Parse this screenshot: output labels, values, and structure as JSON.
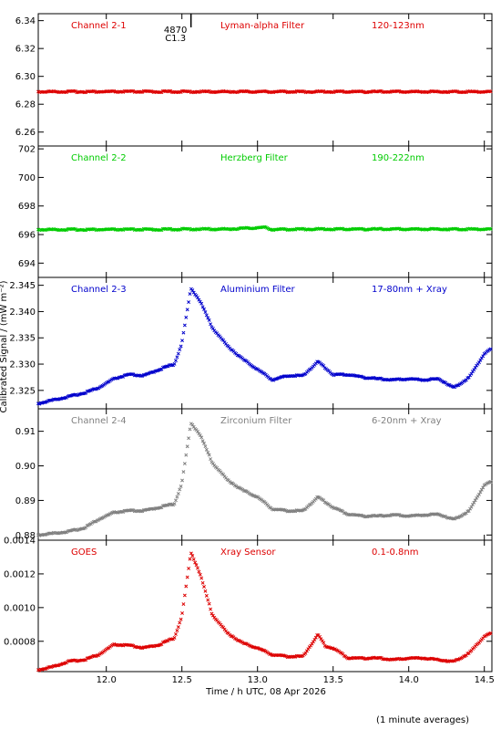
{
  "chart_data": {
    "type": "scatter",
    "xlabel": "Time / h UTC, 08 Apr 2026",
    "ylabel": "Calibrated Signal / (mW m⁻²)",
    "footnote": "(1 minute averages)",
    "xlim": [
      11.55,
      14.55
    ],
    "xticks": [
      12.0,
      12.5,
      13.0,
      13.5,
      14.0,
      14.5
    ],
    "xtick_labels": [
      "12.0",
      "12.5",
      "13.0",
      "13.5",
      "14.0",
      "14.5"
    ],
    "event": {
      "x": 12.56,
      "label_top": "4870",
      "label_bottom": "C1.3"
    },
    "panels": [
      {
        "channel": "Channel 2-1",
        "filter": "Lyman-alpha Filter",
        "band": "120-123nm",
        "color": "#dd0000",
        "ylim": [
          6.25,
          6.345
        ],
        "yticks": [
          6.26,
          6.28,
          6.3,
          6.32,
          6.34
        ],
        "ytick_labels": [
          "6.26",
          "6.28",
          "6.30",
          "6.32",
          "6.34"
        ],
        "points": [
          [
            11.55,
            6.289
          ],
          [
            11.8,
            6.289
          ],
          [
            12.05,
            6.289
          ],
          [
            12.3,
            6.289
          ],
          [
            12.55,
            6.289
          ],
          [
            12.8,
            6.289
          ],
          [
            13.05,
            6.289
          ],
          [
            13.3,
            6.289
          ],
          [
            13.55,
            6.289
          ],
          [
            13.8,
            6.289
          ],
          [
            14.05,
            6.289
          ],
          [
            14.3,
            6.289
          ],
          [
            14.55,
            6.289
          ]
        ]
      },
      {
        "channel": "Channel 2-2",
        "filter": "Herzberg Filter",
        "band": "190-222nm",
        "color": "#00cc00",
        "ylim": [
          693.0,
          702.2
        ],
        "yticks": [
          694,
          696,
          698,
          700,
          702
        ],
        "ytick_labels": [
          "694",
          "696",
          "698",
          "700",
          "702"
        ],
        "points": [
          [
            11.55,
            696.35
          ],
          [
            11.8,
            696.35
          ],
          [
            12.05,
            696.35
          ],
          [
            12.3,
            696.35
          ],
          [
            12.55,
            696.38
          ],
          [
            12.8,
            696.38
          ],
          [
            13.05,
            696.5
          ],
          [
            13.1,
            696.35
          ],
          [
            13.3,
            696.38
          ],
          [
            13.55,
            696.38
          ],
          [
            13.8,
            696.38
          ],
          [
            14.05,
            696.38
          ],
          [
            14.3,
            696.38
          ],
          [
            14.55,
            696.38
          ]
        ]
      },
      {
        "channel": "Channel 2-3",
        "filter": "Aluminium Filter",
        "band": "17-80nm + Xray",
        "color": "#0000cc",
        "ylim": [
          2.3215,
          2.3465
        ],
        "yticks": [
          2.325,
          2.33,
          2.335,
          2.34,
          2.345
        ],
        "ytick_labels": [
          "2.325",
          "2.330",
          "2.335",
          "2.340",
          "2.345"
        ],
        "points": [
          [
            11.55,
            2.3225
          ],
          [
            11.65,
            2.3232
          ],
          [
            11.75,
            2.3238
          ],
          [
            11.85,
            2.3245
          ],
          [
            11.95,
            2.3255
          ],
          [
            12.05,
            2.3272
          ],
          [
            12.15,
            2.328
          ],
          [
            12.25,
            2.3278
          ],
          [
            12.35,
            2.329
          ],
          [
            12.45,
            2.33
          ],
          [
            12.5,
            2.334
          ],
          [
            12.56,
            2.3445
          ],
          [
            12.62,
            2.342
          ],
          [
            12.7,
            2.337
          ],
          [
            12.8,
            2.3335
          ],
          [
            12.9,
            2.331
          ],
          [
            13.0,
            2.329
          ],
          [
            13.1,
            2.327
          ],
          [
            13.2,
            2.3278
          ],
          [
            13.3,
            2.3278
          ],
          [
            13.4,
            2.3305
          ],
          [
            13.5,
            2.328
          ],
          [
            13.6,
            2.328
          ],
          [
            13.7,
            2.3275
          ],
          [
            13.8,
            2.3272
          ],
          [
            13.9,
            2.327
          ],
          [
            14.0,
            2.3272
          ],
          [
            14.1,
            2.327
          ],
          [
            14.2,
            2.3272
          ],
          [
            14.3,
            2.3255
          ],
          [
            14.4,
            2.3275
          ],
          [
            14.5,
            2.332
          ],
          [
            14.55,
            2.333
          ]
        ]
      },
      {
        "channel": "Channel 2-4",
        "filter": "Zirconium Filter",
        "band": "6-20nm + Xray",
        "color": "#808080",
        "ylim": [
          0.8785,
          0.9165
        ],
        "yticks": [
          0.88,
          0.89,
          0.9,
          0.91
        ],
        "ytick_labels": [
          "0.88",
          "0.89",
          "0.90",
          "0.91"
        ],
        "points": [
          [
            11.55,
            0.88
          ],
          [
            11.65,
            0.8805
          ],
          [
            11.75,
            0.881
          ],
          [
            11.85,
            0.882
          ],
          [
            11.95,
            0.8845
          ],
          [
            12.05,
            0.8865
          ],
          [
            12.15,
            0.887
          ],
          [
            12.25,
            0.887
          ],
          [
            12.35,
            0.888
          ],
          [
            12.45,
            0.889
          ],
          [
            12.5,
            0.895
          ],
          [
            12.56,
            0.9125
          ],
          [
            12.62,
            0.909
          ],
          [
            12.7,
            0.901
          ],
          [
            12.8,
            0.896
          ],
          [
            12.9,
            0.893
          ],
          [
            13.0,
            0.891
          ],
          [
            13.1,
            0.8875
          ],
          [
            13.2,
            0.887
          ],
          [
            13.3,
            0.887
          ],
          [
            13.4,
            0.891
          ],
          [
            13.5,
            0.888
          ],
          [
            13.6,
            0.886
          ],
          [
            13.7,
            0.8855
          ],
          [
            13.8,
            0.8855
          ],
          [
            13.9,
            0.8858
          ],
          [
            14.0,
            0.8855
          ],
          [
            14.1,
            0.8858
          ],
          [
            14.2,
            0.886
          ],
          [
            14.3,
            0.8845
          ],
          [
            14.4,
            0.887
          ],
          [
            14.5,
            0.8945
          ],
          [
            14.55,
            0.8955
          ]
        ]
      },
      {
        "channel": "GOES",
        "filter": "Xray Sensor",
        "band": "0.1-0.8nm",
        "color": "#dd0000",
        "ylim": [
          0.00062,
          0.0014
        ],
        "yticks": [
          0.0008,
          0.001,
          0.0012,
          0.0014
        ],
        "ytick_labels": [
          "0.0008",
          "0.0010",
          "0.0012",
          "0.0014"
        ],
        "points": [
          [
            11.55,
            0.00063
          ],
          [
            11.65,
            0.00065
          ],
          [
            11.75,
            0.00068
          ],
          [
            11.85,
            0.00069
          ],
          [
            11.95,
            0.00072
          ],
          [
            12.05,
            0.00078
          ],
          [
            12.15,
            0.000775
          ],
          [
            12.25,
            0.00076
          ],
          [
            12.35,
            0.00078
          ],
          [
            12.45,
            0.00082
          ],
          [
            12.5,
            0.00095
          ],
          [
            12.56,
            0.00133
          ],
          [
            12.62,
            0.0012
          ],
          [
            12.7,
            0.00096
          ],
          [
            12.8,
            0.00085
          ],
          [
            12.9,
            0.00079
          ],
          [
            13.0,
            0.00076
          ],
          [
            13.1,
            0.00072
          ],
          [
            13.2,
            0.00071
          ],
          [
            13.3,
            0.00071
          ],
          [
            13.4,
            0.00084
          ],
          [
            13.45,
            0.00077
          ],
          [
            13.5,
            0.00076
          ],
          [
            13.6,
            0.0007
          ],
          [
            13.7,
            0.0007
          ],
          [
            13.8,
            0.0007
          ],
          [
            13.9,
            0.00069
          ],
          [
            14.0,
            0.0007
          ],
          [
            14.1,
            0.0007
          ],
          [
            14.2,
            0.00069
          ],
          [
            14.3,
            0.00068
          ],
          [
            14.4,
            0.00073
          ],
          [
            14.5,
            0.00083
          ],
          [
            14.55,
            0.00085
          ]
        ]
      }
    ]
  }
}
